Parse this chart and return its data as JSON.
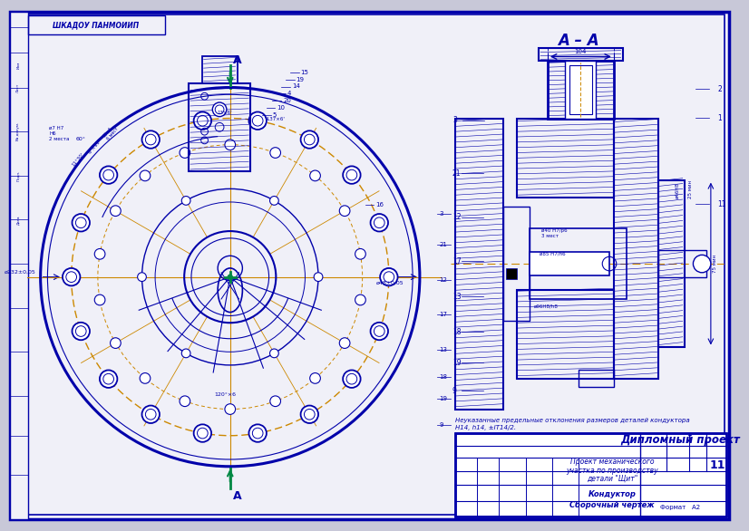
{
  "bg_color": "#c8c8d8",
  "paper_color": "#f0f0f8",
  "border_color": "#0000aa",
  "line_color": "#0000aa",
  "orange_color": "#cc8800",
  "green_color": "#008844",
  "hatch_color": "#0000aa",
  "title_box": "ШКАДОУ ПАНМОИИП",
  "section_label": "А – А",
  "note_line1": "Неуказанные предельные отклонения размеров деталей кондуктора",
  "note_line2": "Н14, h14, ±IT14/2.",
  "diploma_title": "Дипломный проект",
  "diploma_sub1": "Проект механического",
  "diploma_sub2": "участка по производству",
  "diploma_sub3": "детали \"Щит\"",
  "diploma_name": "Кондуктор",
  "diploma_type": "Сборочный чертеж",
  "sheet_num": "11",
  "format_label": "Формат   А2"
}
